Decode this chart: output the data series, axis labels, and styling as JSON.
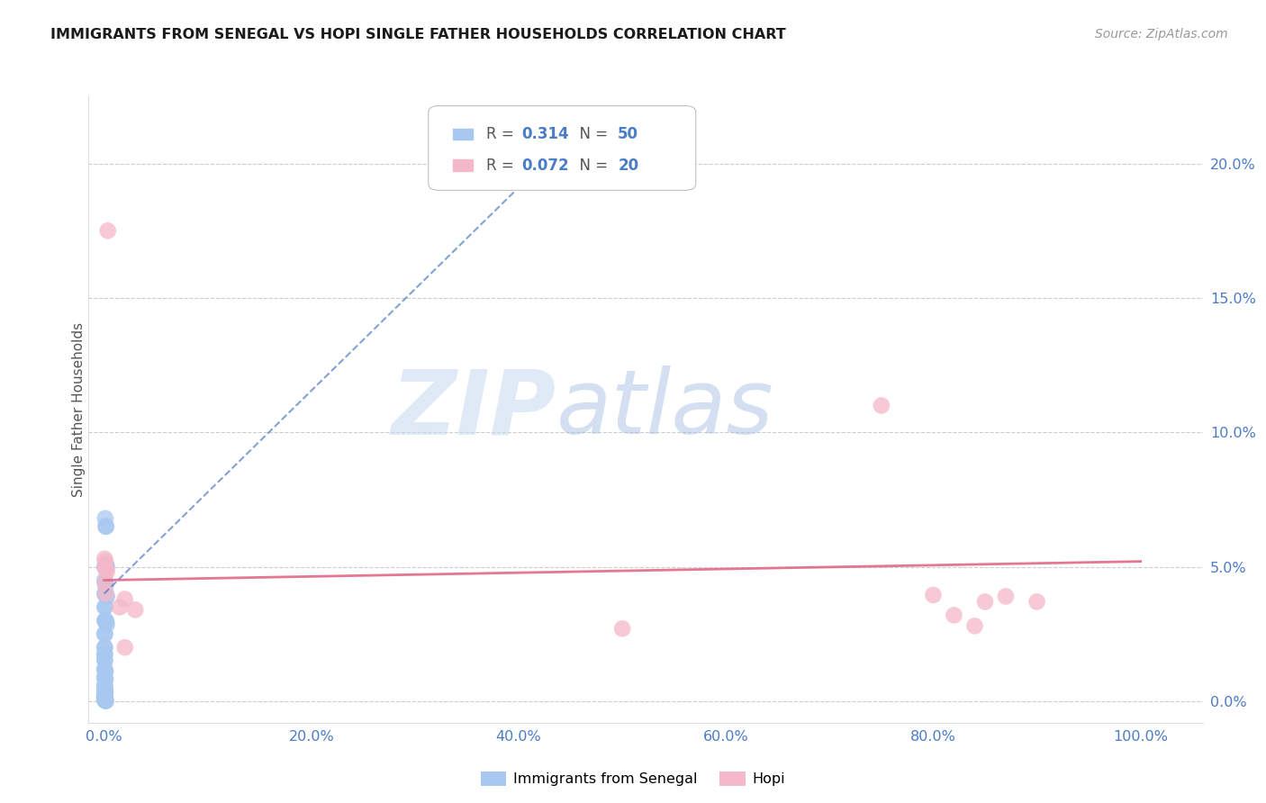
{
  "title": "IMMIGRANTS FROM SENEGAL VS HOPI SINGLE FATHER HOUSEHOLDS CORRELATION CHART",
  "source": "Source: ZipAtlas.com",
  "ylabel": "Single Father Households",
  "ytick_labels": [
    "0.0%",
    "5.0%",
    "10.0%",
    "15.0%",
    "20.0%"
  ],
  "ytick_vals": [
    0,
    0.05,
    0.1,
    0.15,
    0.2
  ],
  "xtick_labels": [
    "0.0%",
    "20.0%",
    "40.0%",
    "60.0%",
    "80.0%",
    "100.0%"
  ],
  "xtick_vals": [
    0,
    0.2,
    0.4,
    0.6,
    0.8,
    1.0
  ],
  "xlim": [
    -0.015,
    1.06
  ],
  "ylim": [
    -0.008,
    0.225
  ],
  "blue_R": 0.314,
  "blue_N": 50,
  "pink_R": 0.072,
  "pink_N": 20,
  "blue_color": "#a8c8f0",
  "pink_color": "#f5b8c8",
  "blue_line_color": "#4070c0",
  "pink_line_color": "#e06888",
  "grid_color": "#cccccc",
  "background_color": "#ffffff",
  "watermark_zip": "ZIP",
  "watermark_atlas": "atlas",
  "legend_box_color": "#f0f0f8",
  "legend_border_color": "#c0c0d0",
  "blue_scatter": [
    [
      0.001,
      0.068
    ],
    [
      0.0015,
      0.065
    ],
    [
      0.002,
      0.065
    ],
    [
      0.0005,
      0.05
    ],
    [
      0.001,
      0.05
    ],
    [
      0.0015,
      0.051
    ],
    [
      0.002,
      0.05
    ],
    [
      0.0025,
      0.05
    ],
    [
      0.0005,
      0.045
    ],
    [
      0.001,
      0.044
    ],
    [
      0.0015,
      0.043
    ],
    [
      0.0005,
      0.04
    ],
    [
      0.001,
      0.04
    ],
    [
      0.0015,
      0.04
    ],
    [
      0.002,
      0.039
    ],
    [
      0.0025,
      0.039
    ],
    [
      0.0005,
      0.035
    ],
    [
      0.001,
      0.035
    ],
    [
      0.0005,
      0.03
    ],
    [
      0.001,
      0.03
    ],
    [
      0.0015,
      0.03
    ],
    [
      0.002,
      0.0295
    ],
    [
      0.0025,
      0.0285
    ],
    [
      0.0003,
      0.025
    ],
    [
      0.0008,
      0.025
    ],
    [
      0.0003,
      0.02
    ],
    [
      0.0008,
      0.02
    ],
    [
      0.0003,
      0.0175
    ],
    [
      0.0008,
      0.0175
    ],
    [
      0.0003,
      0.0155
    ],
    [
      0.0008,
      0.015
    ],
    [
      0.0003,
      0.012
    ],
    [
      0.0008,
      0.0115
    ],
    [
      0.0013,
      0.011
    ],
    [
      0.0003,
      0.009
    ],
    [
      0.0008,
      0.0085
    ],
    [
      0.0013,
      0.008
    ],
    [
      0.0003,
      0.006
    ],
    [
      0.0008,
      0.0055
    ],
    [
      0.0003,
      0.0045
    ],
    [
      0.0008,
      0.004
    ],
    [
      0.0013,
      0.0035
    ],
    [
      0.0003,
      0.0025
    ],
    [
      0.0008,
      0.0022
    ],
    [
      0.0003,
      0.0015
    ],
    [
      0.0008,
      0.0012
    ],
    [
      0.0003,
      0.0005
    ],
    [
      0.0008,
      0.0003
    ],
    [
      0.0013,
      0.0001
    ],
    [
      0.0018,
      0.0001
    ]
  ],
  "pink_scatter": [
    [
      0.0035,
      0.175
    ],
    [
      0.0005,
      0.053
    ],
    [
      0.0012,
      0.052
    ],
    [
      0.001,
      0.05
    ],
    [
      0.002,
      0.049
    ],
    [
      0.0025,
      0.048
    ],
    [
      0.0008,
      0.044
    ],
    [
      0.0015,
      0.04
    ],
    [
      0.02,
      0.038
    ],
    [
      0.015,
      0.035
    ],
    [
      0.03,
      0.034
    ],
    [
      0.02,
      0.02
    ],
    [
      0.5,
      0.027
    ],
    [
      0.75,
      0.11
    ],
    [
      0.8,
      0.0395
    ],
    [
      0.82,
      0.032
    ],
    [
      0.84,
      0.028
    ],
    [
      0.85,
      0.037
    ],
    [
      0.87,
      0.039
    ],
    [
      0.9,
      0.037
    ]
  ],
  "blue_line_x": [
    0.0,
    0.45
  ],
  "blue_line_y": [
    0.04,
    0.21
  ],
  "pink_line_x": [
    0.0,
    1.0
  ],
  "pink_line_y": [
    0.045,
    0.052
  ]
}
